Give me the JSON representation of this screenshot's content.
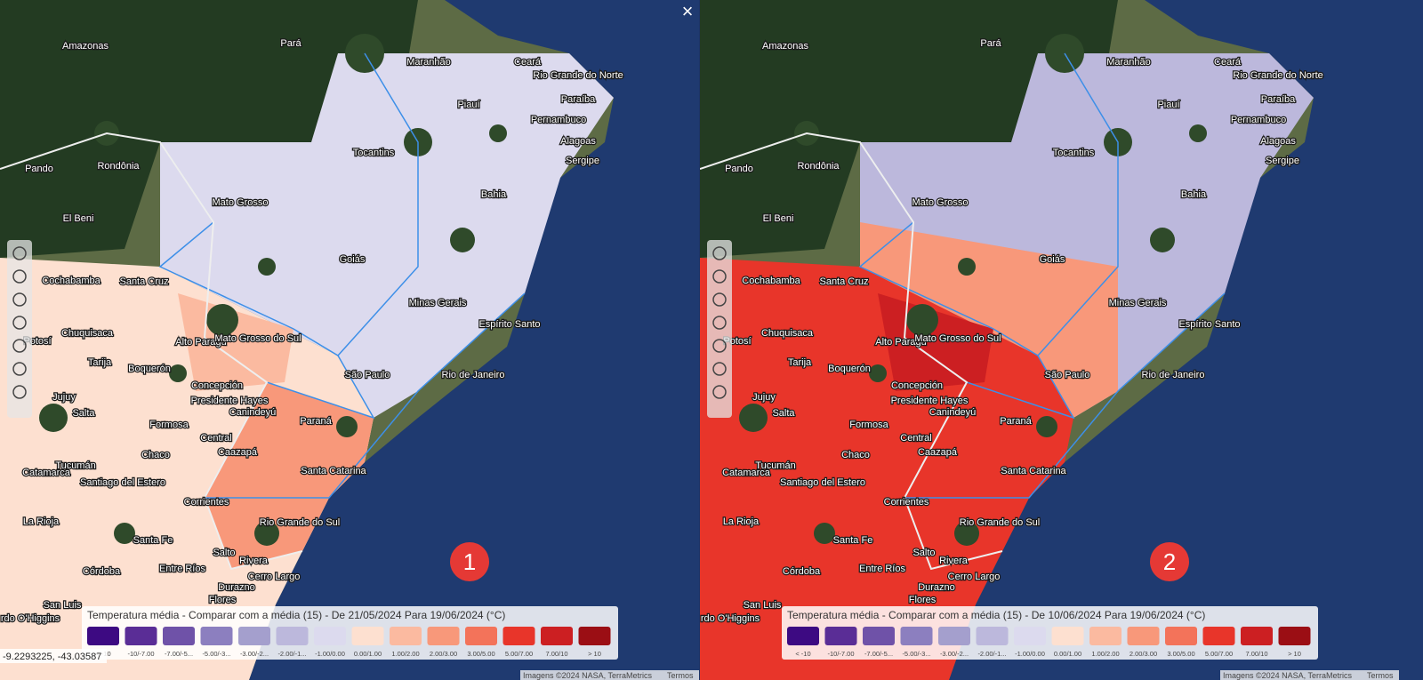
{
  "panels": [
    {
      "badge": "1",
      "legend_title": "Temperatura média - Comparar com a média (15) - De 21/05/2024 Para 19/06/2024 (°C)"
    },
    {
      "badge": "2",
      "legend_title": "Temperatura média - Comparar com a média (15) - De 10/06/2024 Para 19/06/2024 (°C)"
    }
  ],
  "legend_items": [
    {
      "label": "< -10",
      "color": "#3d0a82"
    },
    {
      "label": "-10/-7.00",
      "color": "#5a2d96"
    },
    {
      "label": "-7.00/-5...",
      "color": "#6f52a8"
    },
    {
      "label": "-5.00/-3...",
      "color": "#8c7fbf"
    },
    {
      "label": "-3.00/-2...",
      "color": "#a49fcd"
    },
    {
      "label": "-2.00/-1...",
      "color": "#bcb8dc"
    },
    {
      "label": "-1.00/0.00",
      "color": "#dcdaee"
    },
    {
      "label": "0.00/1.00",
      "color": "#fde0d0"
    },
    {
      "label": "1.00/2.00",
      "color": "#fbbaa0"
    },
    {
      "label": "2.00/3.00",
      "color": "#f8987a"
    },
    {
      "label": "3.00/5.00",
      "color": "#f3735a"
    },
    {
      "label": "5.00/7.00",
      "color": "#e8352a"
    },
    {
      "label": "7.00/10",
      "color": "#cc1f22"
    },
    {
      "label": "> 10",
      "color": "#9b0e14"
    }
  ],
  "region_labels": [
    "Amazonas",
    "Pará",
    "Maranhão",
    "Ceará",
    "Rio Grande do Norte",
    "Piauí",
    "Paraíba",
    "Pernambuco",
    "Alagoas",
    "Sergipe",
    "Tocantins",
    "Bahia",
    "Rondônia",
    "Pando",
    "El Beni",
    "Mato Grosso",
    "Goiás",
    "Minas Gerais",
    "Espírito Santo",
    "Cochabamba",
    "Santa Cruz",
    "Chuquisaca",
    "Potosí",
    "Alto Paragu",
    "Mato Grosso do Sul",
    "Tarija",
    "Boquerón",
    "São Paulo",
    "Rio de Janeiro",
    "Concepción",
    "Jujuy",
    "Presidente Hayes",
    "Salta",
    "Canindeyú",
    "Paraná",
    "Formosa",
    "Central",
    "Chaco",
    "Caazapá",
    "Tucumán",
    "Santa Catarina",
    "Catamarca",
    "Santiago del Estero",
    "Corrientes",
    "La Rioja",
    "Rio Grande do Sul",
    "Santa Fe",
    "Entre Ríos",
    "Córdoba",
    "Cerro Largo",
    "San Luis",
    "Salto",
    "Rivera",
    "Durazno",
    "Flores",
    "rdo O'Higgins"
  ],
  "coordinates": "-9.2293225, -43.03587",
  "attribution": "Imagens ©2024 NASA, TerraMetrics",
  "terms": "Termos",
  "close": "×"
}
